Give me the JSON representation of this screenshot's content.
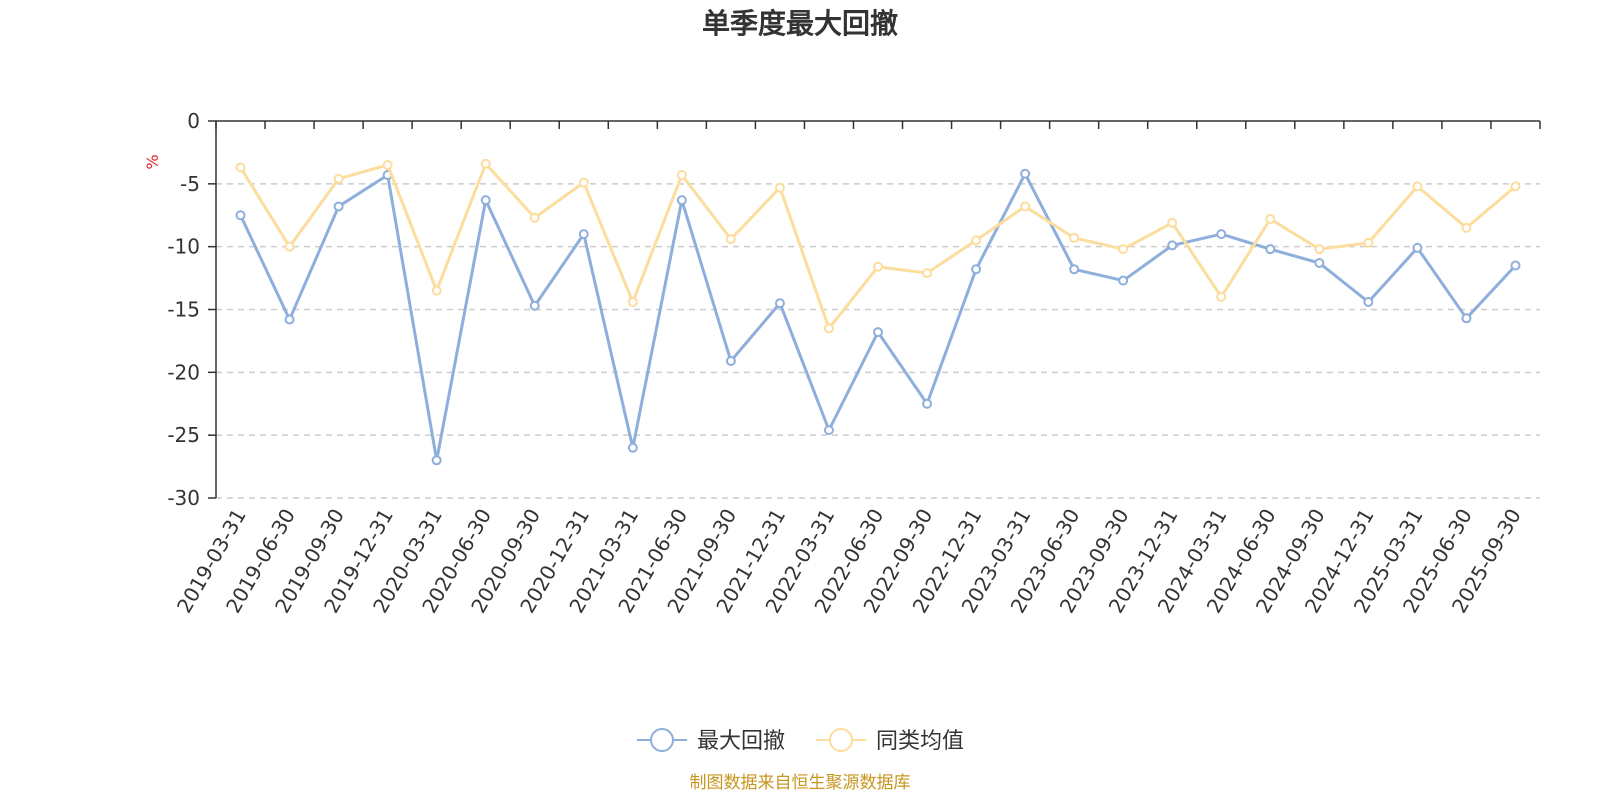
{
  "chart_data": {
    "type": "line",
    "title": "单季度最大回撤",
    "ylabel": "%",
    "xlabel": "",
    "ylim": [
      -30,
      0
    ],
    "yticks": [
      0,
      -5,
      -10,
      -15,
      -20,
      -25,
      -30
    ],
    "grid": true,
    "legend_position": "bottom",
    "categories": [
      "2019-03-31",
      "2019-06-30",
      "2019-09-30",
      "2019-12-31",
      "2020-03-31",
      "2020-06-30",
      "2020-09-30",
      "2020-12-31",
      "2021-03-31",
      "2021-06-30",
      "2021-09-30",
      "2021-12-31",
      "2022-03-31",
      "2022-06-30",
      "2022-09-30",
      "2022-12-31",
      "2023-03-31",
      "2023-06-30",
      "2023-09-30",
      "2023-12-31",
      "2024-03-31",
      "2024-06-30",
      "2024-09-30",
      "2024-12-31",
      "2025-03-31",
      "2025-06-30",
      "2025-09-30"
    ],
    "series": [
      {
        "name": "最大回撤",
        "color": "#8eaedb",
        "values": [
          -7.5,
          -15.8,
          -6.8,
          -4.3,
          -27.0,
          -6.3,
          -14.7,
          -9.0,
          -26.0,
          -6.3,
          -19.1,
          -14.5,
          -24.6,
          -16.8,
          -22.5,
          -11.8,
          -4.2,
          -11.8,
          -12.7,
          -9.9,
          -9.0,
          -10.2,
          -11.3,
          -14.4,
          -10.1,
          -15.7,
          -11.5
        ]
      },
      {
        "name": "同类均值",
        "color": "#fcdd9e",
        "values": [
          -3.7,
          -10.0,
          -4.6,
          -3.5,
          -13.5,
          -3.4,
          -7.7,
          -4.9,
          -14.4,
          -4.3,
          -9.4,
          -5.3,
          -16.5,
          -11.6,
          -12.1,
          -9.5,
          -6.8,
          -9.3,
          -10.2,
          -8.1,
          -14.0,
          -7.8,
          -10.2,
          -9.7,
          -5.2,
          -8.5,
          -5.2
        ]
      }
    ],
    "source": "制图数据来自恒生聚源数据库"
  }
}
